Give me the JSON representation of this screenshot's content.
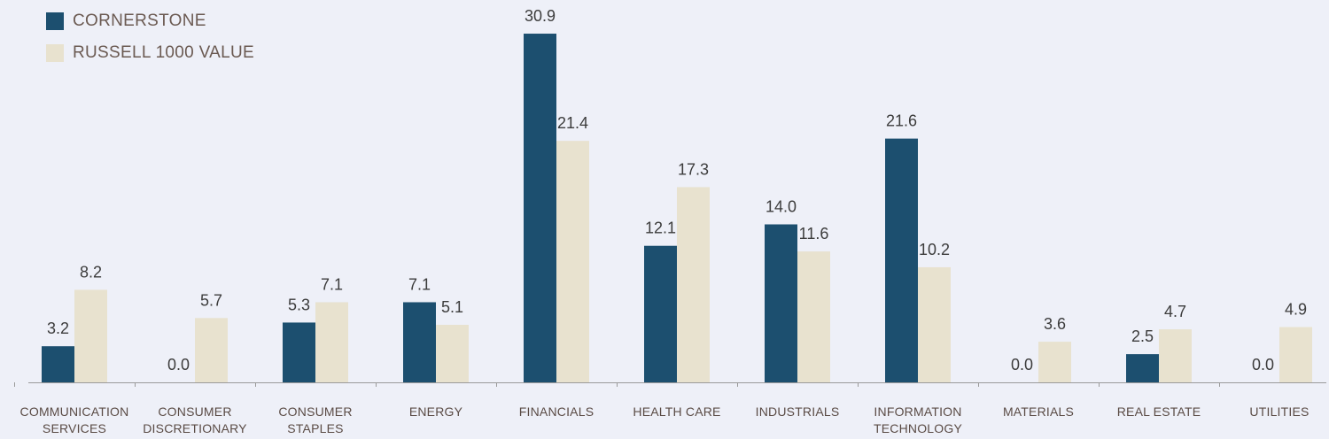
{
  "chart_data": {
    "type": "bar",
    "categories": [
      "COMMUNICATION SERVICES",
      "CONSUMER DISCRETIONARY",
      "CONSUMER STAPLES",
      "ENERGY",
      "FINANCIALS",
      "HEALTH CARE",
      "INDUSTRIALS",
      "INFORMATION TECHNOLOGY",
      "MATERIALS",
      "REAL ESTATE",
      "UTILITIES"
    ],
    "series": [
      {
        "name": "CORNERSTONE",
        "color": "#1c4f6f",
        "values": [
          3.2,
          0.0,
          5.3,
          7.1,
          30.9,
          12.1,
          14.0,
          21.6,
          0.0,
          2.5,
          0.0
        ]
      },
      {
        "name": "RUSSELL 1000 VALUE",
        "color": "#e8e2cf",
        "values": [
          8.2,
          5.7,
          7.1,
          5.1,
          21.4,
          17.3,
          11.6,
          10.2,
          3.6,
          4.7,
          4.9
        ]
      }
    ],
    "ylim": [
      0,
      31
    ],
    "legend_position": "top-left",
    "grid": false
  }
}
